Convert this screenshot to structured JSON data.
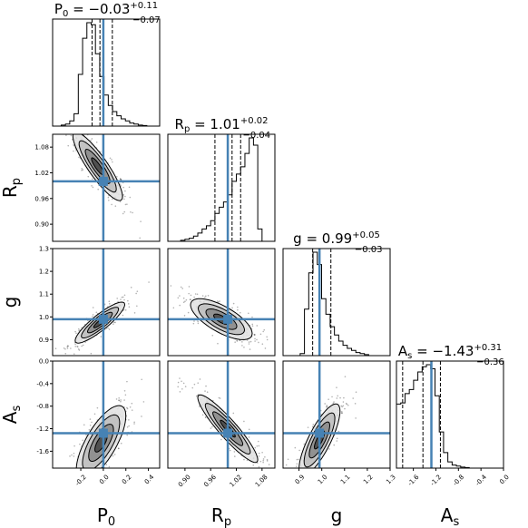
{
  "chart_data": {
    "type": "corner",
    "params": [
      {
        "key": "P0",
        "label": "P",
        "label_sub": "0",
        "truth": 0.0,
        "range": [
          -0.45,
          0.5
        ],
        "ticks": [
          -0.2,
          0.0,
          0.2,
          0.4
        ],
        "tick_labels": [
          "-0.2",
          "0.0",
          "0.2",
          "0.4"
        ],
        "median": -0.03,
        "q_lo": -0.1,
        "q_hi": 0.08,
        "title": {
          "base": "P",
          "sub": "0",
          "value": " = −0.03",
          "plus": "+0.11",
          "minus": "−0.07"
        },
        "hist": [
          0,
          0,
          0.01,
          0.02,
          0.05,
          0.12,
          0.5,
          0.85,
          1.0,
          0.98,
          0.7,
          0.48,
          0.3,
          0.2,
          0.14,
          0.1,
          0.07,
          0.05,
          0.03,
          0.02,
          0.01,
          0.005,
          0,
          0,
          0
        ]
      },
      {
        "key": "Rp",
        "label": "R",
        "label_sub": "p",
        "truth": 1.0,
        "range": [
          0.86,
          1.11
        ],
        "ticks": [
          0.9,
          0.96,
          1.02,
          1.08
        ],
        "tick_labels": [
          "0.90",
          "0.96",
          "1.02",
          "1.08"
        ],
        "median": 1.01,
        "q_lo": 0.97,
        "q_hi": 1.03,
        "title": {
          "base": "R",
          "sub": "p",
          "value": " = 1.01",
          "plus": "+0.02",
          "minus": "−0.04"
        },
        "hist": [
          0,
          0,
          0,
          0.01,
          0.02,
          0.03,
          0.05,
          0.08,
          0.12,
          0.15,
          0.2,
          0.27,
          0.33,
          0.38,
          0.45,
          0.58,
          0.65,
          0.72,
          0.85,
          1.0,
          0.93,
          0.12,
          0,
          0,
          0
        ]
      },
      {
        "key": "g",
        "label": "g",
        "label_sub": "",
        "truth": 0.99,
        "range": [
          0.83,
          1.3
        ],
        "ticks": [
          0.9,
          1.0,
          1.1,
          1.2,
          1.3
        ],
        "tick_labels": [
          "0.9",
          "1.0",
          "1.1",
          "1.2",
          "1.3"
        ],
        "median": 0.99,
        "q_lo": 0.96,
        "q_hi": 1.04,
        "title": {
          "base": "g",
          "sub": "",
          "value": " = 0.99",
          "plus": "+0.05",
          "minus": "−0.03"
        },
        "hist": [
          0,
          0,
          0,
          0,
          0.02,
          0.45,
          0.8,
          1.0,
          0.88,
          0.55,
          0.4,
          0.28,
          0.2,
          0.14,
          0.1,
          0.07,
          0.05,
          0.03,
          0.02,
          0.01,
          0,
          0,
          0,
          0,
          0
        ]
      },
      {
        "key": "As",
        "label": "A",
        "label_sub": "s",
        "truth": -1.28,
        "range": [
          -1.9,
          0.0
        ],
        "ticks": [
          -1.6,
          -1.2,
          -0.8,
          -0.4,
          0.0
        ],
        "tick_labels": [
          "-1.6",
          "-1.2",
          "-0.8",
          "-0.4",
          "0.0"
        ],
        "median": -1.43,
        "q_lo": -1.79,
        "q_hi": -1.12,
        "title": {
          "base": "A",
          "sub": "s",
          "value": " = −1.43",
          "plus": "+0.31",
          "minus": "−0.36"
        },
        "hist": [
          0.62,
          0.63,
          0.72,
          0.76,
          0.85,
          0.93,
          0.98,
          1.0,
          0.96,
          0.7,
          0.35,
          0.15,
          0.06,
          0.03,
          0.02,
          0.01,
          0.005,
          0,
          0,
          0,
          0,
          0,
          0,
          0,
          0
        ]
      }
    ],
    "pairs": [
      {
        "x": "P0",
        "y": "Rp",
        "center": [
          -0.05,
          1.035
        ],
        "sx": 0.11,
        "sy": 0.04,
        "rho": -0.88
      },
      {
        "x": "P0",
        "y": "g",
        "center": [
          -0.03,
          0.975
        ],
        "sx": 0.11,
        "sy": 0.045,
        "rho": 0.88
      },
      {
        "x": "Rp",
        "y": "g",
        "center": [
          0.985,
          0.99
        ],
        "sx": 0.036,
        "sy": 0.045,
        "rho": -0.7
      },
      {
        "x": "P0",
        "y": "As",
        "center": [
          -0.02,
          -1.45
        ],
        "sx": 0.11,
        "sy": 0.33,
        "rho": 0.72
      },
      {
        "x": "Rp",
        "y": "As",
        "center": [
          1.0,
          -1.2
        ],
        "sx": 0.035,
        "sy": 0.3,
        "rho": -0.92
      },
      {
        "x": "g",
        "y": "As",
        "center": [
          0.99,
          -1.4
        ],
        "sx": 0.045,
        "sy": 0.32,
        "rho": 0.8
      }
    ],
    "truth_color": "#4682b4",
    "hist_color": "#000000"
  }
}
